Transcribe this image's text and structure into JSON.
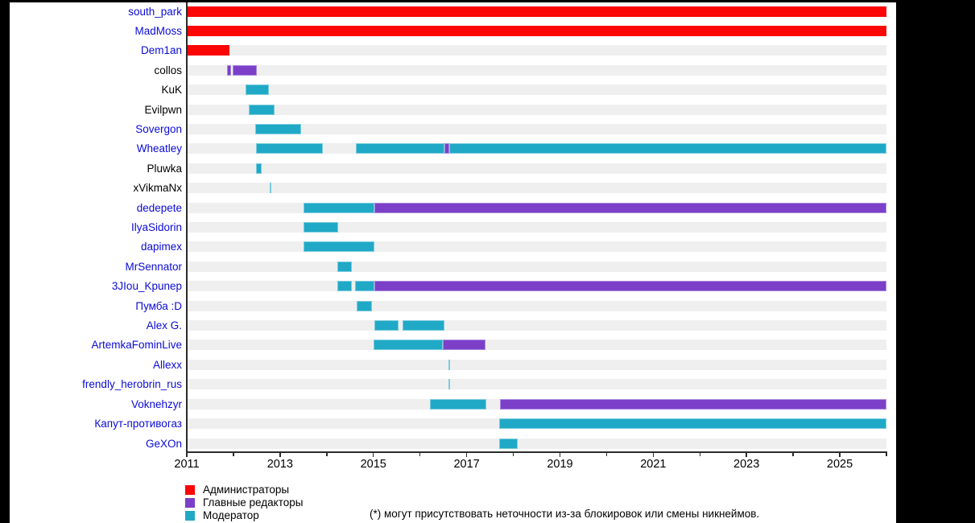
{
  "chart_data": {
    "type": "gantt-timeline",
    "title": "",
    "x_axis": {
      "min": 2011,
      "max": 2026,
      "major_ticks": [
        2011,
        2013,
        2015,
        2017,
        2019,
        2021,
        2023,
        2025
      ],
      "minor_tick_interval": 1,
      "tick_label_format": "year"
    },
    "roles": {
      "admin": {
        "name": "Администраторы",
        "color": "#fb0505",
        "border": "#fb0505"
      },
      "editor": {
        "name": "Главные редакторы",
        "color": "#7b3fc8",
        "border": "#ab8ade"
      },
      "moderator": {
        "name": "Модератор",
        "color": "#20a9c6",
        "border": "#7bccdd"
      }
    },
    "legend": [
      {
        "label": "Администраторы",
        "role": "admin"
      },
      {
        "label": "Главные редакторы",
        "role": "editor"
      },
      {
        "label": "Модератор",
        "role": "moderator"
      }
    ],
    "footnote": "(*) могут присутствовать неточности из-за блокировок или смены никнеймов.",
    "rows": [
      {
        "name": "south_park",
        "link": true,
        "segments": [
          {
            "role": "admin",
            "start": 2011.0,
            "end": 2026.0
          }
        ]
      },
      {
        "name": "MadMoss",
        "link": true,
        "segments": [
          {
            "role": "admin",
            "start": 2011.0,
            "end": 2026.0
          }
        ]
      },
      {
        "name": "Dem1an",
        "link": true,
        "segments": [
          {
            "role": "admin",
            "start": 2011.0,
            "end": 2011.92
          }
        ]
      },
      {
        "name": "collos",
        "link": false,
        "segments": [
          {
            "role": "editor",
            "start": 2011.86,
            "end": 2011.95
          },
          {
            "role": "editor",
            "start": 2011.98,
            "end": 2012.5
          }
        ]
      },
      {
        "name": "KuK",
        "link": false,
        "segments": [
          {
            "role": "moderator",
            "start": 2012.26,
            "end": 2012.76
          }
        ]
      },
      {
        "name": "Evilpwn",
        "link": false,
        "segments": [
          {
            "role": "moderator",
            "start": 2012.33,
            "end": 2012.88
          }
        ]
      },
      {
        "name": "Sovergon",
        "link": true,
        "segments": [
          {
            "role": "moderator",
            "start": 2012.47,
            "end": 2013.45
          }
        ]
      },
      {
        "name": "Wheatley",
        "link": true,
        "segments": [
          {
            "role": "moderator",
            "start": 2012.48,
            "end": 2013.92
          },
          {
            "role": "moderator",
            "start": 2014.62,
            "end": 2016.52
          },
          {
            "role": "editor",
            "start": 2016.52,
            "end": 2016.63
          },
          {
            "role": "moderator",
            "start": 2016.63,
            "end": 2026.0
          }
        ]
      },
      {
        "name": "Pluwka",
        "link": false,
        "segments": [
          {
            "role": "moderator",
            "start": 2012.48,
            "end": 2012.6
          }
        ]
      },
      {
        "name": "xVikmaNx",
        "link": false,
        "segments": [
          {
            "role": "moderator",
            "start": 2012.78,
            "end": 2012.81
          }
        ]
      },
      {
        "name": "dedepete",
        "link": true,
        "segments": [
          {
            "role": "moderator",
            "start": 2013.5,
            "end": 2015.03
          },
          {
            "role": "editor",
            "start": 2015.03,
            "end": 2026.0
          }
        ]
      },
      {
        "name": "IlyaSidorin",
        "link": true,
        "segments": [
          {
            "role": "moderator",
            "start": 2013.5,
            "end": 2014.24
          }
        ]
      },
      {
        "name": "dapimex",
        "link": true,
        "segments": [
          {
            "role": "moderator",
            "start": 2013.5,
            "end": 2015.03
          }
        ]
      },
      {
        "name": "MrSennator",
        "link": true,
        "segments": [
          {
            "role": "moderator",
            "start": 2014.23,
            "end": 2014.54
          }
        ]
      },
      {
        "name": "3JIou_Kpunep",
        "link": true,
        "segments": [
          {
            "role": "moderator",
            "start": 2014.23,
            "end": 2014.54
          },
          {
            "role": "moderator",
            "start": 2014.61,
            "end": 2015.02
          },
          {
            "role": "editor",
            "start": 2015.02,
            "end": 2026.0
          }
        ]
      },
      {
        "name": "Пумба :D",
        "link": true,
        "segments": [
          {
            "role": "moderator",
            "start": 2014.64,
            "end": 2014.97
          }
        ]
      },
      {
        "name": "Alex G.",
        "link": true,
        "segments": [
          {
            "role": "moderator",
            "start": 2015.02,
            "end": 2015.54
          },
          {
            "role": "moderator",
            "start": 2015.63,
            "end": 2016.52
          }
        ]
      },
      {
        "name": "ArtemkaFominLive",
        "link": true,
        "segments": [
          {
            "role": "moderator",
            "start": 2015.0,
            "end": 2016.49
          },
          {
            "role": "editor",
            "start": 2016.49,
            "end": 2017.4
          }
        ]
      },
      {
        "name": "Allexx",
        "link": true,
        "segments": [
          {
            "role": "moderator",
            "start": 2016.61,
            "end": 2016.64
          }
        ]
      },
      {
        "name": "frendly_herobrin_rus",
        "link": true,
        "segments": [
          {
            "role": "moderator",
            "start": 2016.61,
            "end": 2016.64
          }
        ]
      },
      {
        "name": "Voknehzyr",
        "link": true,
        "segments": [
          {
            "role": "moderator",
            "start": 2016.21,
            "end": 2017.42
          },
          {
            "role": "editor",
            "start": 2017.71,
            "end": 2026.0
          }
        ]
      },
      {
        "name": "Капут-противогаз",
        "link": true,
        "segments": [
          {
            "role": "moderator",
            "start": 2017.7,
            "end": 2026.0
          }
        ]
      },
      {
        "name": "GeXOn",
        "link": true,
        "segments": [
          {
            "role": "moderator",
            "start": 2017.7,
            "end": 2018.09
          }
        ]
      }
    ]
  }
}
